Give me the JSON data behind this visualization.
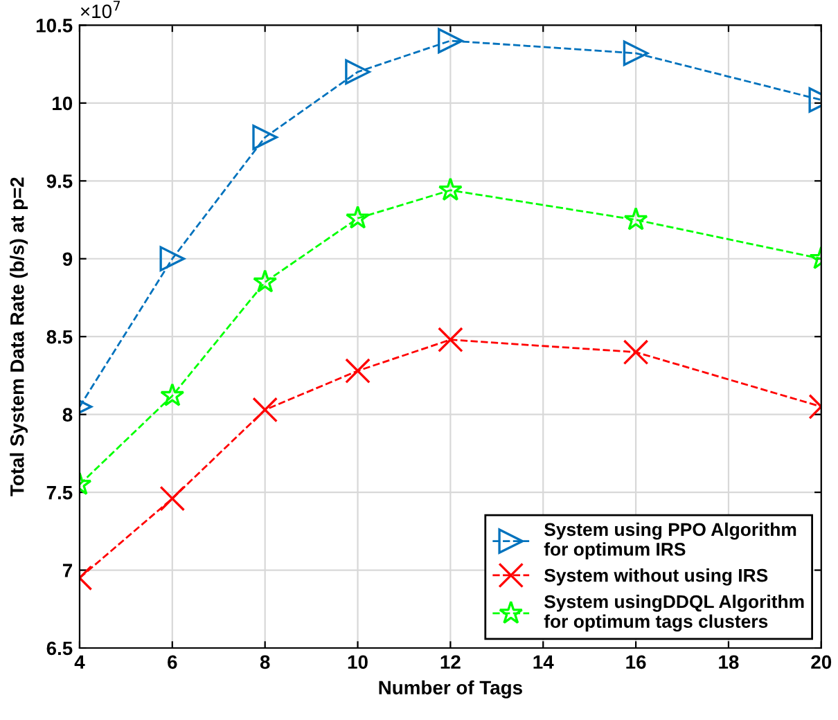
{
  "chart_data": {
    "type": "line",
    "xlabel": "Number of Tags",
    "ylabel": "Total System Data Rate (b/s) at p=2",
    "x": [
      4,
      6,
      8,
      10,
      12,
      16,
      20
    ],
    "series": [
      {
        "name": "System using PPO Algorithm\nfor optimum IRS",
        "color": "#0072bd",
        "marker": "triangle",
        "values": [
          8.05,
          9.0,
          9.78,
          10.2,
          10.4,
          10.32,
          10.02
        ]
      },
      {
        "name": "System without using IRS",
        "color": "#ff0000",
        "marker": "cross",
        "values": [
          6.95,
          7.46,
          8.03,
          8.28,
          8.48,
          8.4,
          8.05
        ]
      },
      {
        "name": "System usingDDQL Algorithm\nfor optimum tags clusters",
        "color": "#00ff00",
        "marker": "star",
        "values": [
          7.55,
          8.12,
          8.85,
          9.26,
          9.44,
          9.25,
          9.0
        ]
      }
    ],
    "xlim": [
      4,
      20
    ],
    "xticks": [
      4,
      6,
      8,
      10,
      12,
      14,
      16,
      18,
      20
    ],
    "ylim": [
      6.5,
      10.5
    ],
    "yticks": [
      6.5,
      7,
      7.5,
      8,
      8.5,
      9,
      9.5,
      10,
      10.5
    ],
    "annotations": [
      "×10$^{7}$"
    ],
    "grid": true,
    "legend": "bottom right",
    "line_style": "dashed"
  }
}
